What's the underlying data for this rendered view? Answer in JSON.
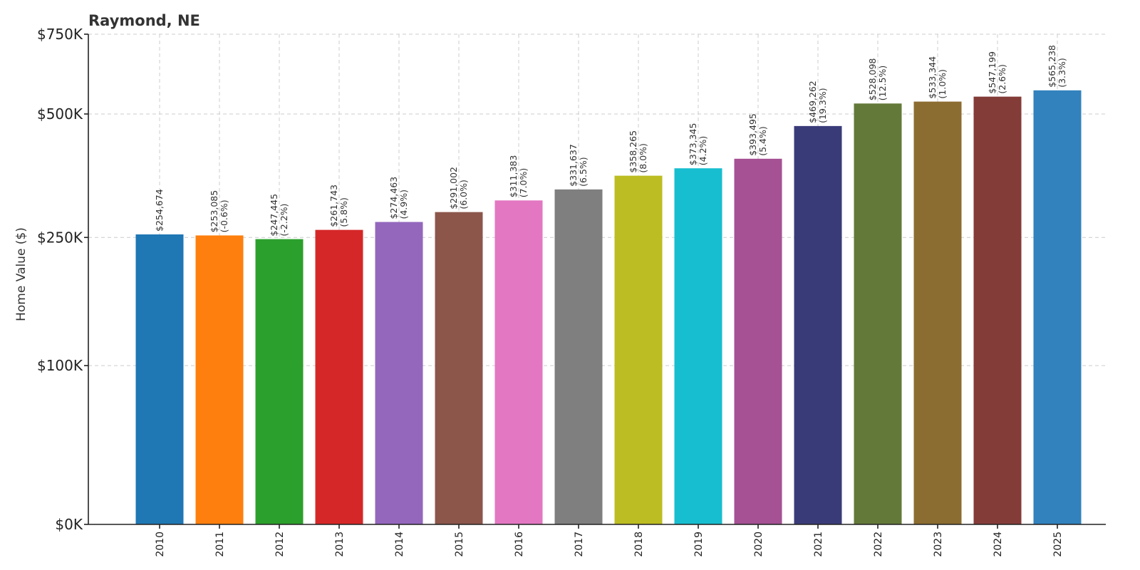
{
  "chart_data": {
    "type": "bar",
    "title": "Raymond, NE",
    "xlabel": "",
    "ylabel": "Home Value ($)",
    "ylim": [
      0,
      750000
    ],
    "yscale": "symlog",
    "grid": true,
    "y_ticks": [
      {
        "value": 0,
        "label": "$0K"
      },
      {
        "value": 100000,
        "label": "$100K"
      },
      {
        "value": 250000,
        "label": "$250K"
      },
      {
        "value": 500000,
        "label": "$500K"
      },
      {
        "value": 750000,
        "label": "$750K"
      }
    ],
    "categories": [
      "2010",
      "2011",
      "2012",
      "2013",
      "2014",
      "2015",
      "2016",
      "2017",
      "2018",
      "2019",
      "2020",
      "2021",
      "2022",
      "2023",
      "2024",
      "2025"
    ],
    "values": [
      254674,
      253085,
      247445,
      261743,
      274463,
      291002,
      311383,
      331637,
      358265,
      373345,
      393495,
      469262,
      528098,
      533344,
      547199,
      565238
    ],
    "value_labels": [
      "$254,674",
      "$253,085",
      "$247,445",
      "$261,743",
      "$274,463",
      "$291,002",
      "$311,383",
      "$331,637",
      "$358,265",
      "$373,345",
      "$393,495",
      "$469,262",
      "$528,098",
      "$533,344",
      "$547,199",
      "$565,238"
    ],
    "change_labels": [
      "",
      "(-0.6%)",
      "(-2.2%)",
      "(5.8%)",
      "(4.9%)",
      "(6.0%)",
      "(7.0%)",
      "(6.5%)",
      "(8.0%)",
      "(4.2%)",
      "(5.4%)",
      "(19.3%)",
      "(12.5%)",
      "(1.0%)",
      "(2.6%)",
      "(3.3%)"
    ],
    "colors": [
      "#1f77b4",
      "#ff7f0e",
      "#2ca02c",
      "#d62728",
      "#9467bd",
      "#8c564b",
      "#e377c2",
      "#7f7f7f",
      "#bcbd22",
      "#17becf",
      "#a55194",
      "#393b79",
      "#637939",
      "#8c6d31",
      "#843c39",
      "#3182bd"
    ]
  }
}
